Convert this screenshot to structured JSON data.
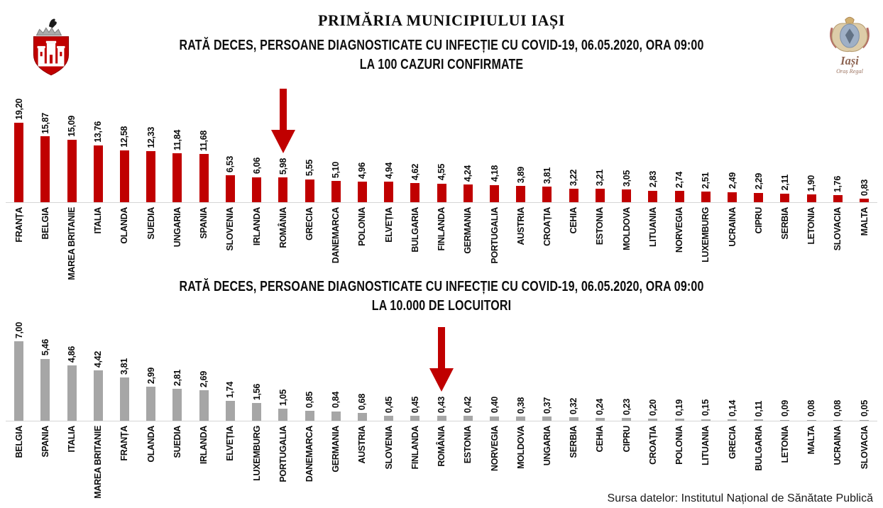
{
  "header": {
    "title": "PRIMĂRIA MUNICIPIULUI IAȘI",
    "left_logo_icon": "iasi-municipality-coat-of-arms",
    "right_logo_icon": "iasi-royal-crest",
    "right_logo_text": "Iași",
    "right_logo_subtext": "Oraș Regal"
  },
  "source_note": "Sursa datelor: Institutul Național de Sănătate Publică",
  "colors": {
    "bar_red": "#c00000",
    "bar_gray": "#a6a6a6",
    "arrow": "#c00000",
    "axis_line": "#d6d6d6",
    "text": "#0d0d0d"
  },
  "chart_data": [
    {
      "type": "bar",
      "title_line1": "RATĂ DECES, PERSOANE DIAGNOSTICATE CU INFECȚIE CU COVID-19, 06.05.2020, ORA 09:00",
      "title_line2": "LA 100 CAZURI CONFIRMATE",
      "bar_color": "#c00000",
      "highlight": "ROMÂNIA",
      "highlight_marker": "red-down-arrow",
      "legend": "none",
      "grid": false,
      "ylim": [
        0,
        20
      ],
      "categories": [
        "FRANȚA",
        "BELGIA",
        "MAREA BRITANIE",
        "ITALIA",
        "OLANDA",
        "SUEDIA",
        "UNGARIA",
        "SPANIA",
        "SLOVENIA",
        "IRLANDA",
        "ROMÂNIA",
        "GRECIA",
        "DANEMARCA",
        "POLONIA",
        "ELVEȚIA",
        "BULGARIA",
        "FINLANDA",
        "GERMANIA",
        "PORTUGALIA",
        "AUSTRIA",
        "CROAȚIA",
        "CEHIA",
        "ESTONIA",
        "MOLDOVA",
        "LITUANIA",
        "NORVEGIA",
        "LUXEMBURG",
        "UCRAINA",
        "CIPRU",
        "SERBIA",
        "LETONIA",
        "SLOVACIA",
        "MALTA"
      ],
      "values": [
        19.2,
        15.87,
        15.09,
        13.76,
        12.58,
        12.33,
        11.84,
        11.68,
        6.53,
        6.06,
        5.98,
        5.55,
        5.1,
        4.96,
        4.94,
        4.62,
        4.55,
        4.24,
        4.18,
        3.89,
        3.81,
        3.22,
        3.21,
        3.05,
        2.83,
        2.74,
        2.51,
        2.49,
        2.29,
        2.11,
        1.9,
        1.76,
        0.83
      ],
      "value_labels": [
        "19,20",
        "15,87",
        "15,09",
        "13,76",
        "12,58",
        "12,33",
        "11,84",
        "11,68",
        "6,53",
        "6,06",
        "5,98",
        "5,55",
        "5,10",
        "4,96",
        "4,94",
        "4,62",
        "4,55",
        "4,24",
        "4,18",
        "3,89",
        "3,81",
        "3,22",
        "3,21",
        "3,05",
        "2,83",
        "2,74",
        "2,51",
        "2,49",
        "2,29",
        "2,11",
        "1,90",
        "1,76",
        "0,83"
      ]
    },
    {
      "type": "bar",
      "title_line1": "RATĂ DECES, PERSOANE DIAGNOSTICATE CU INFECȚIE CU COVID-19, 06.05.2020, ORA 09:00",
      "title_line2": "LA 10.000 DE LOCUITORI",
      "bar_color": "#a6a6a6",
      "highlight": "ROMÂNIA",
      "highlight_marker": "red-down-arrow",
      "legend": "none",
      "grid": false,
      "ylim": [
        0,
        7
      ],
      "categories": [
        "BELGIA",
        "SPANIA",
        "ITALIA",
        "MAREA BRITANIE",
        "FRANȚA",
        "OLANDA",
        "SUEDIA",
        "IRLANDA",
        "ELVEȚIA",
        "LUXEMBURG",
        "PORTUGALIA",
        "DANEMARCA",
        "GERMANIA",
        "AUSTRIA",
        "SLOVENIA",
        "FINLANDA",
        "ROMÂNIA",
        "ESTONIA",
        "NORVEGIA",
        "MOLDOVA",
        "UNGARIA",
        "SERBIA",
        "CEHIA",
        "CIPRU",
        "CROAȚIA",
        "POLONIA",
        "LITUANIA",
        "GRECIA",
        "BULGARIA",
        "LETONIA",
        "MALTA",
        "UCRAINA",
        "SLOVACIA"
      ],
      "values": [
        7.0,
        5.46,
        4.86,
        4.42,
        3.81,
        2.99,
        2.81,
        2.69,
        1.74,
        1.56,
        1.05,
        0.85,
        0.84,
        0.68,
        0.45,
        0.45,
        0.43,
        0.42,
        0.4,
        0.38,
        0.37,
        0.32,
        0.24,
        0.23,
        0.2,
        0.19,
        0.15,
        0.14,
        0.11,
        0.09,
        0.08,
        0.08,
        0.05
      ],
      "value_labels": [
        "7,00",
        "5,46",
        "4,86",
        "4,42",
        "3,81",
        "2,99",
        "2,81",
        "2,69",
        "1,74",
        "1,56",
        "1,05",
        "0,85",
        "0,84",
        "0,68",
        "0,45",
        "0,45",
        "0,43",
        "0,42",
        "0,40",
        "0,38",
        "0,37",
        "0,32",
        "0,24",
        "0,23",
        "0,20",
        "0,19",
        "0,15",
        "0,14",
        "0,11",
        "0,09",
        "0,08",
        "0,08",
        "0,05"
      ]
    }
  ]
}
